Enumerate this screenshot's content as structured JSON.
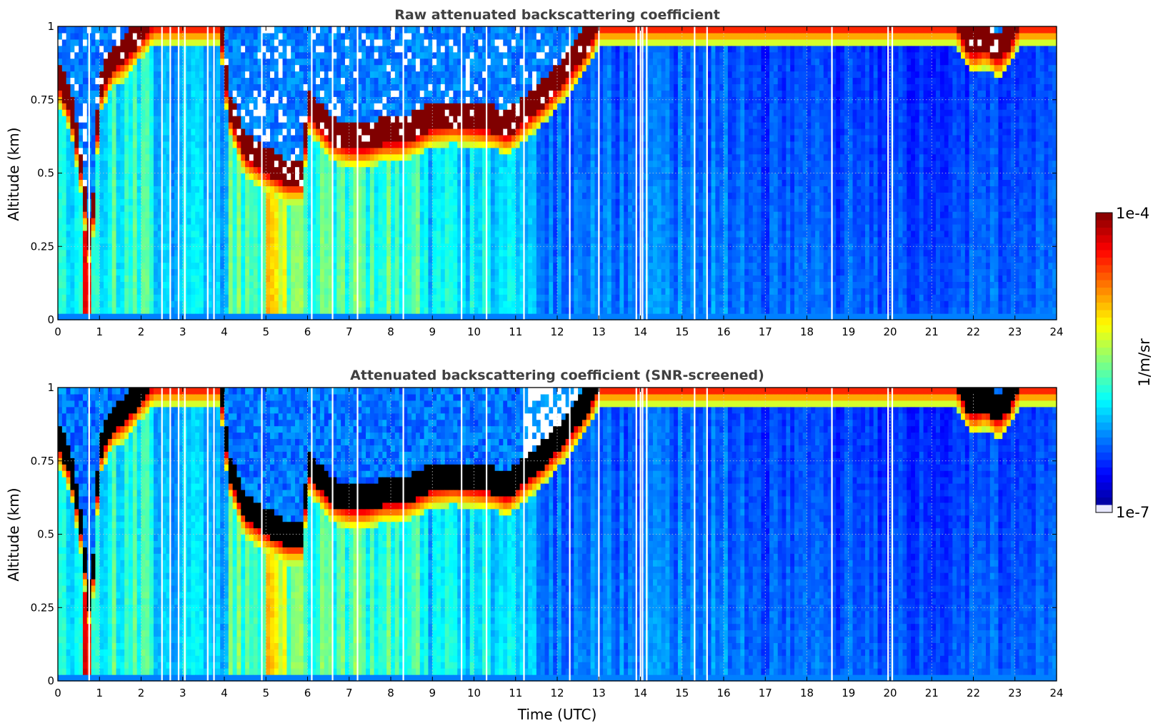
{
  "chart_data": [
    {
      "type": "heatmap",
      "title": "Raw attenuated backscattering coefficient",
      "xlabel": "",
      "ylabel": "Altitude (km)",
      "xlim": [
        0,
        24
      ],
      "ylim": [
        0,
        1
      ],
      "xticks": [
        "0",
        "1",
        "2",
        "3",
        "4",
        "5",
        "6",
        "7",
        "8",
        "9",
        "10",
        "11",
        "12",
        "13",
        "14",
        "15",
        "16",
        "17",
        "18",
        "19",
        "20",
        "21",
        "22",
        "23",
        "24"
      ],
      "yticks": [
        "0",
        "0.25",
        "0.5",
        "0.75",
        "1"
      ],
      "grid": true,
      "screened": false,
      "cloud_base_km": [
        [
          0.0,
          0.8
        ],
        [
          0.3,
          0.7
        ],
        [
          0.5,
          0.55
        ],
        [
          0.6,
          0.45
        ],
        [
          0.7,
          0.3
        ],
        [
          0.8,
          0.2
        ],
        [
          0.9,
          0.5
        ],
        [
          1.0,
          0.75
        ],
        [
          1.3,
          0.85
        ],
        [
          1.6,
          0.88
        ],
        [
          2.0,
          0.95
        ],
        [
          2.3,
          1.0
        ],
        [
          3.9,
          1.0
        ],
        [
          4.1,
          0.7
        ],
        [
          4.5,
          0.55
        ],
        [
          5.0,
          0.5
        ],
        [
          5.5,
          0.46
        ],
        [
          5.9,
          0.46
        ],
        [
          6.0,
          0.7
        ],
        [
          6.3,
          0.65
        ],
        [
          6.6,
          0.6
        ],
        [
          7.0,
          0.58
        ],
        [
          7.4,
          0.58
        ],
        [
          7.8,
          0.6
        ],
        [
          8.2,
          0.6
        ],
        [
          8.6,
          0.62
        ],
        [
          9.0,
          0.65
        ],
        [
          9.5,
          0.66
        ],
        [
          10.0,
          0.65
        ],
        [
          10.5,
          0.64
        ],
        [
          10.8,
          0.62
        ],
        [
          11.2,
          0.67
        ],
        [
          11.6,
          0.72
        ],
        [
          12.0,
          0.78
        ],
        [
          12.4,
          0.85
        ],
        [
          12.8,
          0.93
        ],
        [
          13.0,
          1.0
        ],
        [
          21.6,
          1.0
        ],
        [
          21.8,
          0.93
        ],
        [
          22.0,
          0.9
        ],
        [
          22.3,
          0.92
        ],
        [
          22.6,
          0.88
        ],
        [
          22.9,
          0.93
        ],
        [
          23.1,
          1.0
        ],
        [
          24.0,
          1.0
        ]
      ],
      "missing_times_utc": [
        0.75,
        2.5,
        2.7,
        2.9,
        3.05,
        3.6,
        3.75,
        4.9,
        6.1,
        6.6,
        7.2,
        8.3,
        9.7,
        10.3,
        11.2,
        12.3,
        13.0,
        13.9,
        14.0,
        14.05,
        14.15,
        15.3,
        15.6,
        18.6,
        19.95,
        20.05
      ]
    },
    {
      "type": "heatmap",
      "title": "Attenuated backscattering coefficient (SNR-screened)",
      "xlabel": "Time (UTC)",
      "ylabel": "Altitude (km)",
      "xlim": [
        0,
        24
      ],
      "ylim": [
        0,
        1
      ],
      "xticks": [
        "0",
        "1",
        "2",
        "3",
        "4",
        "5",
        "6",
        "7",
        "8",
        "9",
        "10",
        "11",
        "12",
        "13",
        "14",
        "15",
        "16",
        "17",
        "18",
        "19",
        "20",
        "21",
        "22",
        "23",
        "24"
      ],
      "yticks": [
        "0",
        "0.25",
        "0.5",
        "0.75",
        "1"
      ],
      "grid": true,
      "screened": true,
      "cloud_base_km": [
        [
          0.0,
          0.8
        ],
        [
          0.3,
          0.7
        ],
        [
          0.5,
          0.55
        ],
        [
          0.6,
          0.45
        ],
        [
          0.7,
          0.3
        ],
        [
          0.8,
          0.2
        ],
        [
          0.9,
          0.5
        ],
        [
          1.0,
          0.75
        ],
        [
          1.3,
          0.85
        ],
        [
          1.6,
          0.88
        ],
        [
          2.0,
          0.95
        ],
        [
          2.3,
          1.0
        ],
        [
          3.9,
          1.0
        ],
        [
          4.1,
          0.7
        ],
        [
          4.5,
          0.55
        ],
        [
          5.0,
          0.5
        ],
        [
          5.5,
          0.46
        ],
        [
          5.9,
          0.46
        ],
        [
          6.0,
          0.7
        ],
        [
          6.3,
          0.65
        ],
        [
          6.6,
          0.6
        ],
        [
          7.0,
          0.58
        ],
        [
          7.4,
          0.58
        ],
        [
          7.8,
          0.6
        ],
        [
          8.2,
          0.6
        ],
        [
          8.6,
          0.62
        ],
        [
          9.0,
          0.65
        ],
        [
          9.5,
          0.66
        ],
        [
          10.0,
          0.65
        ],
        [
          10.5,
          0.64
        ],
        [
          10.8,
          0.62
        ],
        [
          11.2,
          0.67
        ],
        [
          11.6,
          0.72
        ],
        [
          12.0,
          0.78
        ],
        [
          12.4,
          0.85
        ],
        [
          12.8,
          0.93
        ],
        [
          13.0,
          1.0
        ],
        [
          21.6,
          1.0
        ],
        [
          21.8,
          0.93
        ],
        [
          22.0,
          0.9
        ],
        [
          22.3,
          0.92
        ],
        [
          22.6,
          0.88
        ],
        [
          22.9,
          0.93
        ],
        [
          23.1,
          1.0
        ],
        [
          24.0,
          1.0
        ]
      ],
      "missing_times_utc": [
        0.75,
        2.5,
        2.7,
        2.9,
        3.05,
        3.6,
        3.75,
        4.9,
        6.1,
        6.6,
        7.2,
        8.3,
        9.7,
        10.3,
        11.2,
        12.3,
        13.0,
        13.9,
        14.0,
        14.05,
        14.15,
        15.3,
        15.6,
        18.6,
        19.95,
        20.05
      ]
    }
  ],
  "colorbar": {
    "max_label": "1e-4",
    "min_label": "1e-7",
    "label": "1/m/sr",
    "colormap": "jet",
    "low_color": "#e8e8ff",
    "high_color": "#7f0000",
    "above_range_color": "#000000",
    "screened_color": "#ffffff"
  }
}
